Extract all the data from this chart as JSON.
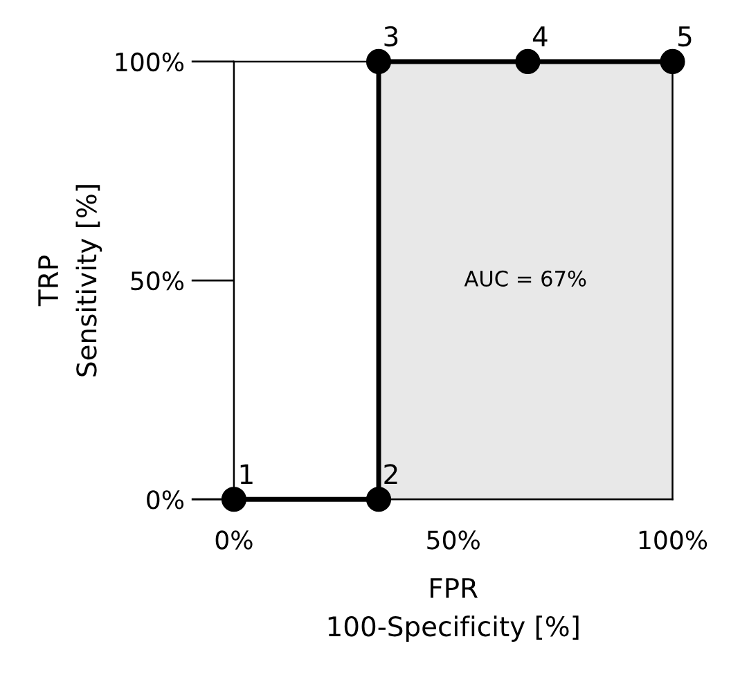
{
  "chart_data": {
    "type": "line",
    "xlabel": "FPR\n100-Specificity [%]",
    "ylabel": "TRP\nSensitivity [%]",
    "x": [
      0,
      33,
      33,
      67,
      100
    ],
    "series": [
      {
        "color": "#000000",
        "values": [
          0,
          0,
          100,
          100,
          100
        ]
      }
    ],
    "marker": "circle",
    "line_style": "solid",
    "xlim": [
      0,
      100
    ],
    "ylim": [
      0,
      100
    ],
    "xticks": [
      {
        "value": 0,
        "label": "0%"
      },
      {
        "value": 50,
        "label": "50%"
      },
      {
        "value": 100,
        "label": "100%"
      }
    ],
    "yticks": [
      {
        "value": 0,
        "label": "0%"
      },
      {
        "value": 50,
        "label": "50%"
      },
      {
        "value": 100,
        "label": "100%"
      }
    ],
    "bands": [
      {
        "axis": "x",
        "from": 33,
        "to": 100,
        "label": "AUC = 67%",
        "color": "#e8e8e8"
      }
    ],
    "annotations": [
      {
        "text": "1",
        "x": 0,
        "y": 0
      },
      {
        "text": "2",
        "x": 33,
        "y": 0
      },
      {
        "text": "3",
        "x": 33,
        "y": 100
      },
      {
        "text": "4",
        "x": 67,
        "y": 100
      },
      {
        "text": "5",
        "x": 100,
        "y": 100
      }
    ],
    "grid": false,
    "legend": false
  }
}
